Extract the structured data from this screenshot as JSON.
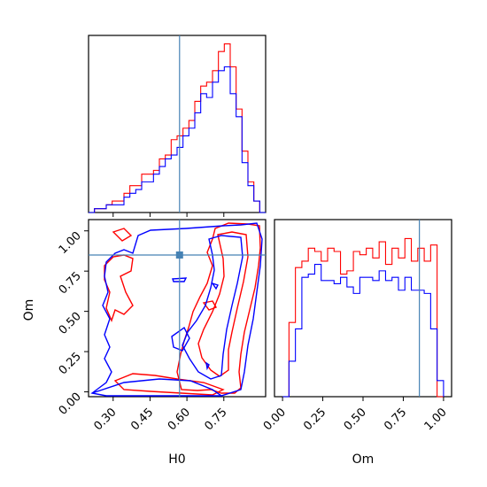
{
  "chart_data": {
    "type": "corner",
    "series": [
      {
        "name": "",
        "color": "#ff0000"
      },
      {
        "name": "",
        "color": "#0000ff"
      }
    ],
    "truth": {
      "H0": 0.57,
      "Om": 0.85,
      "color": "#4682b4"
    },
    "h0_hist": {
      "type": "histogram",
      "range": [
        0.2,
        0.92
      ],
      "bins": 30,
      "red": [
        0,
        1,
        1,
        2,
        3,
        3,
        5,
        7,
        7,
        10,
        10,
        11,
        14,
        15,
        19,
        20,
        22,
        24,
        29,
        33,
        34,
        37,
        42,
        44,
        38,
        27,
        16,
        8,
        3,
        0
      ],
      "blue": [
        0,
        1,
        1,
        2,
        2,
        2,
        4,
        5,
        6,
        8,
        8,
        10,
        12,
        14,
        15,
        17,
        20,
        22,
        26,
        31,
        30,
        34,
        37,
        38,
        31,
        25,
        13,
        7,
        3,
        0
      ]
    },
    "om_hist": {
      "type": "histogram",
      "range": [
        0.0,
        1.0
      ],
      "bins": 25,
      "red": [
        0,
        23,
        40,
        42,
        46,
        45,
        42,
        46,
        45,
        38,
        39,
        45,
        44,
        46,
        43,
        48,
        41,
        46,
        43,
        49,
        42,
        46,
        42,
        47,
        0
      ],
      "blue": [
        0,
        11,
        21,
        37,
        38,
        41,
        36,
        36,
        35,
        37,
        34,
        32,
        37,
        37,
        36,
        39,
        36,
        37,
        33,
        37,
        33,
        33,
        32,
        21,
        5
      ]
    },
    "h0_om": {
      "type": "contour",
      "xlim": [
        0.2,
        0.92
      ],
      "ylim": [
        -0.03,
        1.07
      ]
    },
    "xlabel_h0": "H0",
    "xlabel_om": "Om",
    "ylabel_om": "Om",
    "h0_ticks": [
      "0.30",
      "0.45",
      "0.60",
      "0.75"
    ],
    "om_ticks_y": [
      "0.00",
      "0.25",
      "0.50",
      "0.75",
      "1.00"
    ],
    "om_ticks_x": [
      "0.00",
      "0.25",
      "0.50",
      "0.75",
      "1.00"
    ]
  }
}
